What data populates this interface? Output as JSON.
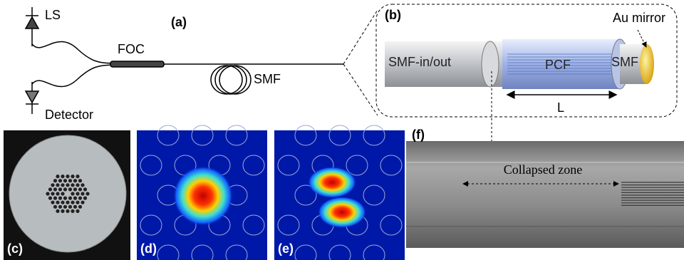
{
  "panels": {
    "a": {
      "label": "(a)",
      "laser": "LS",
      "coupler": "FOC",
      "fiber": "SMF",
      "detector": "Detector"
    },
    "b": {
      "label": "(b)",
      "mirror": "Au mirror",
      "input_fiber": "SMF-in/out",
      "pcf": "PCF",
      "end_fiber": "SMF",
      "length": "L"
    },
    "c": {
      "label": "(c)"
    },
    "d": {
      "label": "(d)"
    },
    "e": {
      "label": "(e)"
    },
    "f": {
      "label": "(f)",
      "annotation": "Collapsed zone"
    }
  }
}
